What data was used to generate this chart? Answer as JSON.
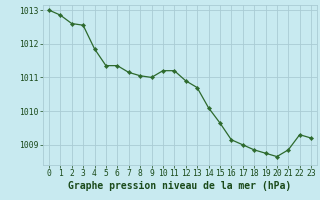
{
  "hours": [
    0,
    1,
    2,
    3,
    4,
    5,
    6,
    7,
    8,
    9,
    10,
    11,
    12,
    13,
    14,
    15,
    16,
    17,
    18,
    19,
    20,
    21,
    22,
    23
  ],
  "pressure": [
    1013.0,
    1012.85,
    1012.6,
    1012.55,
    1011.85,
    1011.35,
    1011.35,
    1011.15,
    1011.05,
    1011.0,
    1011.2,
    1011.2,
    1010.9,
    1010.7,
    1010.1,
    1009.65,
    1009.15,
    1009.0,
    1008.85,
    1008.75,
    1008.65,
    1008.85,
    1009.3,
    1009.2
  ],
  "line_color": "#2d6a2d",
  "marker": "D",
  "marker_size": 2.2,
  "background_color": "#c8eaf0",
  "grid_color": "#aaccd4",
  "xlabel": "Graphe pression niveau de la mer (hPa)",
  "xlabel_color": "#1a4a1a",
  "xlabel_fontsize": 7.0,
  "tick_color": "#1a4a1a",
  "tick_fontsize": 5.8,
  "ylim": [
    1008.4,
    1013.15
  ],
  "xlim": [
    -0.5,
    23.5
  ],
  "yticks": [
    1009,
    1010,
    1011,
    1012,
    1013
  ],
  "xticks": [
    0,
    1,
    2,
    3,
    4,
    5,
    6,
    7,
    8,
    9,
    10,
    11,
    12,
    13,
    14,
    15,
    16,
    17,
    18,
    19,
    20,
    21,
    22,
    23
  ]
}
